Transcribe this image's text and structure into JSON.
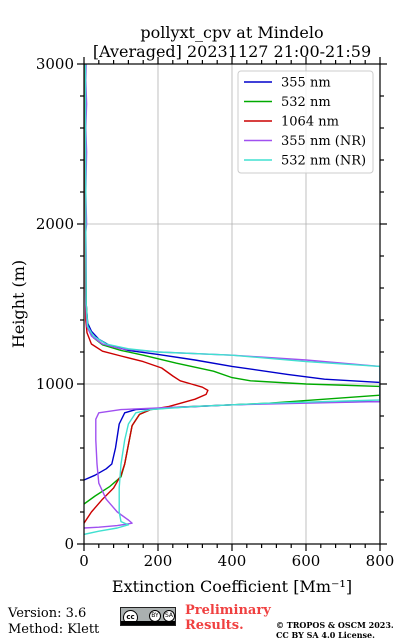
{
  "chart_data": {
    "type": "line",
    "title": "pollyxt_cpv at Mindelo",
    "subtitle": "[Averaged] 20231127 21:00-21:59",
    "xlabel": "Extinction Coefficient [Mm⁻¹]",
    "ylabel": "Height (m)",
    "xlim": [
      0,
      800
    ],
    "ylim": [
      0,
      3000
    ],
    "xticks": [
      0,
      200,
      400,
      600,
      800
    ],
    "yticks": [
      0,
      1000,
      2000,
      3000
    ],
    "grid": true,
    "legend_position": "top-right",
    "series": [
      {
        "name": "355 nm",
        "color": "#0000cc",
        "points": [
          [
            0,
            400
          ],
          [
            30,
            430
          ],
          [
            60,
            470
          ],
          [
            75,
            500
          ],
          [
            85,
            600
          ],
          [
            95,
            750
          ],
          [
            110,
            820
          ],
          [
            140,
            840
          ],
          [
            220,
            850
          ],
          [
            400,
            870
          ],
          [
            600,
            885
          ],
          [
            800,
            890
          ],
          [
            800,
            1010
          ],
          [
            650,
            1030
          ],
          [
            550,
            1060
          ],
          [
            400,
            1110
          ],
          [
            300,
            1150
          ],
          [
            200,
            1185
          ],
          [
            120,
            1210
          ],
          [
            70,
            1240
          ],
          [
            40,
            1280
          ],
          [
            20,
            1330
          ],
          [
            10,
            1380
          ],
          [
            6,
            1500
          ],
          [
            5,
            1800
          ],
          [
            4,
            2200
          ],
          [
            4,
            2600
          ],
          [
            4,
            3000
          ]
        ]
      },
      {
        "name": "532 nm",
        "color": "#00aa00",
        "points": [
          [
            0,
            250
          ],
          [
            30,
            300
          ],
          [
            70,
            360
          ],
          [
            100,
            420
          ],
          [
            110,
            500
          ],
          [
            120,
            620
          ],
          [
            130,
            740
          ],
          [
            150,
            810
          ],
          [
            180,
            840
          ],
          [
            250,
            855
          ],
          [
            500,
            880
          ],
          [
            800,
            930
          ],
          [
            800,
            985
          ],
          [
            600,
            1000
          ],
          [
            450,
            1020
          ],
          [
            400,
            1040
          ],
          [
            350,
            1080
          ],
          [
            250,
            1130
          ],
          [
            160,
            1180
          ],
          [
            100,
            1210
          ],
          [
            50,
            1245
          ],
          [
            25,
            1290
          ],
          [
            10,
            1360
          ],
          [
            6,
            1500
          ],
          [
            5,
            1800
          ],
          [
            4,
            2200
          ],
          [
            4,
            2600
          ],
          [
            4,
            3000
          ]
        ]
      },
      {
        "name": "1064 nm",
        "color": "#cc0000",
        "points": [
          [
            0,
            130
          ],
          [
            20,
            200
          ],
          [
            50,
            280
          ],
          [
            80,
            350
          ],
          [
            100,
            430
          ],
          [
            110,
            500
          ],
          [
            120,
            620
          ],
          [
            130,
            740
          ],
          [
            150,
            810
          ],
          [
            180,
            840
          ],
          [
            230,
            860
          ],
          [
            300,
            905
          ],
          [
            330,
            935
          ],
          [
            335,
            960
          ],
          [
            320,
            980
          ],
          [
            290,
            1000
          ],
          [
            260,
            1020
          ],
          [
            240,
            1050
          ],
          [
            210,
            1100
          ],
          [
            160,
            1140
          ],
          [
            100,
            1175
          ],
          [
            50,
            1205
          ],
          [
            20,
            1250
          ],
          [
            8,
            1320
          ],
          [
            5,
            1400
          ],
          [
            4,
            1600
          ],
          [
            4,
            2000
          ],
          [
            4,
            2400
          ],
          [
            4,
            3000
          ]
        ]
      },
      {
        "name": "355 nm (NR)",
        "color": "#a050f0",
        "points": [
          [
            0,
            100
          ],
          [
            40,
            105
          ],
          [
            90,
            115
          ],
          [
            130,
            130
          ],
          [
            120,
            150
          ],
          [
            90,
            200
          ],
          [
            60,
            280
          ],
          [
            40,
            380
          ],
          [
            35,
            500
          ],
          [
            32,
            650
          ],
          [
            32,
            780
          ],
          [
            40,
            820
          ],
          [
            100,
            840
          ],
          [
            200,
            850
          ],
          [
            400,
            870
          ],
          [
            800,
            890
          ],
          [
            800,
            1110
          ],
          [
            600,
            1150
          ],
          [
            400,
            1180
          ],
          [
            200,
            1200
          ],
          [
            100,
            1220
          ],
          [
            50,
            1250
          ],
          [
            20,
            1300
          ],
          [
            8,
            1360
          ],
          [
            5,
            1500
          ],
          [
            6,
            1800
          ],
          [
            5,
            1950
          ],
          [
            7,
            2000
          ],
          [
            5,
            2200
          ],
          [
            7,
            2450
          ],
          [
            5,
            2600
          ],
          [
            7,
            2750
          ],
          [
            5,
            2900
          ],
          [
            6,
            3000
          ]
        ]
      },
      {
        "name": "532 nm (NR)",
        "color": "#40e0d0",
        "points": [
          [
            0,
            60
          ],
          [
            40,
            80
          ],
          [
            90,
            100
          ],
          [
            120,
            120
          ],
          [
            100,
            140
          ],
          [
            95,
            200
          ],
          [
            95,
            350
          ],
          [
            100,
            500
          ],
          [
            110,
            650
          ],
          [
            120,
            750
          ],
          [
            140,
            820
          ],
          [
            180,
            840
          ],
          [
            300,
            860
          ],
          [
            500,
            880
          ],
          [
            800,
            900
          ],
          [
            800,
            1110
          ],
          [
            600,
            1140
          ],
          [
            400,
            1180
          ],
          [
            200,
            1200
          ],
          [
            120,
            1220
          ],
          [
            60,
            1250
          ],
          [
            25,
            1300
          ],
          [
            10,
            1360
          ],
          [
            6,
            1500
          ],
          [
            5,
            1800
          ],
          [
            5,
            2200
          ],
          [
            4,
            2600
          ],
          [
            4,
            3000
          ]
        ]
      }
    ]
  },
  "footer": {
    "version": "Version: 3.6",
    "method": "Method: Klett",
    "preliminary_line1": "Preliminary",
    "preliminary_line2": "Results.",
    "copyright_line1": "© TROPOS & OSCM 2023.",
    "copyright_line2": "CC BY SA 4.0 License.",
    "license_badge": {
      "cc": "cc",
      "by": "BY",
      "sa": "SA"
    }
  }
}
